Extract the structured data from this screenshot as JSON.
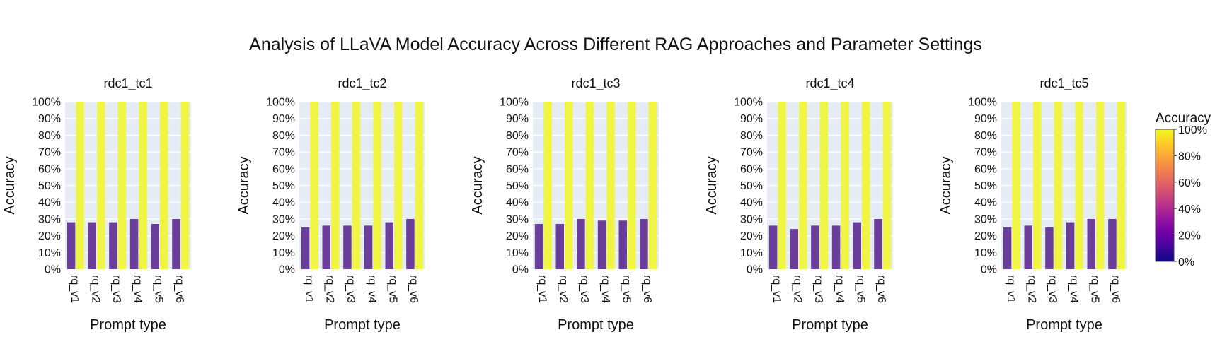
{
  "chart_data": {
    "type": "bar",
    "title": "Analysis of LLaVA Model Accuracy Across Different RAG Approaches and Parameter Settings",
    "xlabel": "Prompt type",
    "ylabel": "Accuracy",
    "ylim": [
      0,
      1
    ],
    "y_ticks": [
      "0%",
      "10%",
      "20%",
      "30%",
      "40%",
      "50%",
      "60%",
      "70%",
      "80%",
      "90%",
      "100%"
    ],
    "categories": [
      "rq_v1",
      "rq_v2",
      "rq_v3",
      "rq_v4",
      "rq_v5",
      "rq_v6"
    ],
    "colors": {
      "plot_bg": "#e5ecf6",
      "low_bar": "#6a3d9a",
      "high_bar": "#eff542"
    },
    "colorbar": {
      "title": "Accuracy",
      "ticks": [
        "0%",
        "20%",
        "40%",
        "60%",
        "80%",
        "100%"
      ],
      "colorscale": [
        "#0d0887",
        "#46039f",
        "#7201a8",
        "#9c179e",
        "#bd3786",
        "#d8576b",
        "#ed7953",
        "#fb9f3a",
        "#fdca26",
        "#f0f921"
      ]
    },
    "panels": [
      {
        "title": "rdc1_tc1",
        "series": [
          {
            "values": [
              0.28,
              0.28,
              0.28,
              0.3,
              0.27,
              0.3
            ]
          },
          {
            "values": [
              1.0,
              1.0,
              1.0,
              1.0,
              1.0,
              1.0
            ]
          }
        ]
      },
      {
        "title": "rdc1_tc2",
        "series": [
          {
            "values": [
              0.25,
              0.26,
              0.26,
              0.26,
              0.28,
              0.3
            ]
          },
          {
            "values": [
              1.0,
              1.0,
              1.0,
              1.0,
              1.0,
              1.0
            ]
          }
        ]
      },
      {
        "title": "rdc1_tc3",
        "series": [
          {
            "values": [
              0.27,
              0.27,
              0.3,
              0.29,
              0.29,
              0.3
            ]
          },
          {
            "values": [
              1.0,
              1.0,
              1.0,
              1.0,
              1.0,
              1.0
            ]
          }
        ]
      },
      {
        "title": "rdc1_tc4",
        "series": [
          {
            "values": [
              0.26,
              0.24,
              0.26,
              0.26,
              0.28,
              0.3
            ]
          },
          {
            "values": [
              1.0,
              1.0,
              1.0,
              1.0,
              1.0,
              1.0
            ]
          }
        ]
      },
      {
        "title": "rdc1_tc5",
        "series": [
          {
            "values": [
              0.25,
              0.26,
              0.25,
              0.28,
              0.3,
              0.3
            ]
          },
          {
            "values": [
              1.0,
              1.0,
              1.0,
              1.0,
              1.0,
              1.0
            ]
          }
        ]
      }
    ]
  }
}
